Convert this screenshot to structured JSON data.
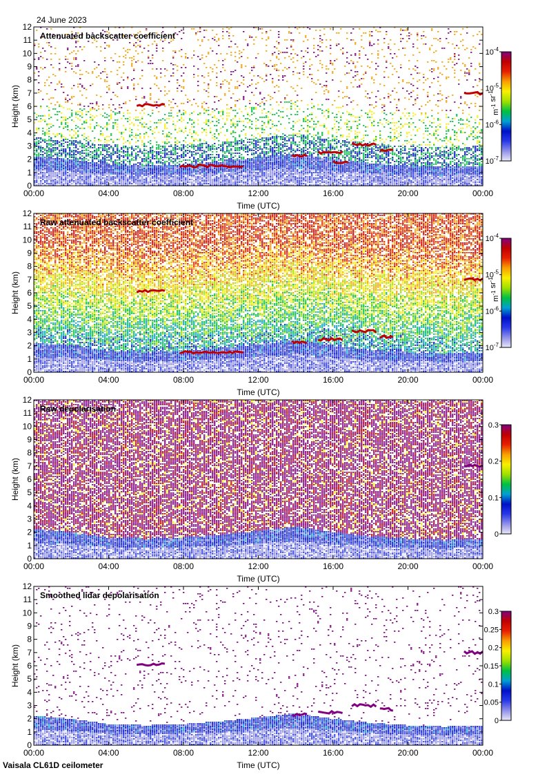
{
  "date_label": "24 June 2023",
  "footer_label": "Vaisala CL61D ceilometer",
  "colors": {
    "frame": "#000000",
    "background": "#ffffff",
    "colormap": [
      "#e8e8f8",
      "#9090e8",
      "#2838e8",
      "#0010c8",
      "#00a0d0",
      "#00c040",
      "#a0e000",
      "#f8f000",
      "#f8a000",
      "#e82000",
      "#c00000",
      "#800080"
    ]
  },
  "chart_data": [
    {
      "type": "heatmap",
      "title": "Attenuated backscatter coefficient",
      "xlabel": "Time (UTC)",
      "ylabel": "Height (km)",
      "xlim": [
        0,
        24
      ],
      "ylim": [
        0,
        12
      ],
      "x_ticks": [
        "00:00",
        "04:00",
        "08:00",
        "12:00",
        "16:00",
        "20:00",
        "00:00"
      ],
      "y_ticks": [
        "0",
        "1",
        "2",
        "3",
        "4",
        "5",
        "6",
        "7",
        "8",
        "9",
        "10",
        "11",
        "12"
      ],
      "colorbar": {
        "scale": "log",
        "range": [
          1e-07,
          0.0001
        ],
        "unit": "m-1 sr-1",
        "ticks": [
          {
            "base": "10",
            "exp": "-7",
            "value": 1e-07
          },
          {
            "base": "10",
            "exp": "-6",
            "value": 1e-06
          },
          {
            "base": "10",
            "exp": "-5",
            "value": 1e-05
          },
          {
            "base": "10",
            "exp": "-4",
            "value": 0.0001
          }
        ]
      },
      "features": {
        "boundary_layer_top_km": [
          2.2,
          2.0,
          1.6,
          1.5,
          1.6,
          1.8,
          2.1,
          2.4,
          2.0,
          1.7,
          1.5,
          1.4,
          1.5
        ],
        "cloud_layers": [
          {
            "t_start": 5.5,
            "t_end": 7.0,
            "height_km": 6.1
          },
          {
            "t_start": 7.8,
            "t_end": 11.2,
            "height_km": 1.5
          },
          {
            "t_start": 13.8,
            "t_end": 14.6,
            "height_km": 2.3
          },
          {
            "t_start": 15.2,
            "t_end": 16.5,
            "height_km": 2.5
          },
          {
            "t_start": 16.0,
            "t_end": 16.8,
            "height_km": 1.8
          },
          {
            "t_start": 17.0,
            "t_end": 18.3,
            "height_km": 3.1
          },
          {
            "t_start": 18.5,
            "t_end": 19.2,
            "height_km": 2.7
          },
          {
            "t_start": 23.0,
            "t_end": 24.0,
            "height_km": 7.0
          }
        ]
      }
    },
    {
      "type": "heatmap",
      "title": "Raw attenuated backscatter coefficient",
      "xlabel": "Time (UTC)",
      "ylabel": "Height (km)",
      "xlim": [
        0,
        24
      ],
      "ylim": [
        0,
        12
      ],
      "x_ticks": [
        "00:00",
        "04:00",
        "08:00",
        "12:00",
        "16:00",
        "20:00",
        "00:00"
      ],
      "y_ticks": [
        "0",
        "1",
        "2",
        "3",
        "4",
        "5",
        "6",
        "7",
        "8",
        "9",
        "10",
        "11",
        "12"
      ],
      "colorbar": {
        "scale": "log",
        "range": [
          1e-07,
          0.0001
        ],
        "unit": "m-1 sr-1",
        "ticks": [
          {
            "base": "10",
            "exp": "-7",
            "value": 1e-07
          },
          {
            "base": "10",
            "exp": "-6",
            "value": 1e-06
          },
          {
            "base": "10",
            "exp": "-5",
            "value": 1e-05
          },
          {
            "base": "10",
            "exp": "-4",
            "value": 0.0001
          }
        ]
      },
      "features": {
        "boundary_layer_top_km": [
          2.2,
          2.0,
          1.6,
          1.5,
          1.6,
          1.8,
          2.1,
          2.4,
          2.0,
          1.7,
          1.5,
          1.4,
          1.5
        ],
        "cloud_layers": [
          {
            "t_start": 5.5,
            "t_end": 7.0,
            "height_km": 6.1
          },
          {
            "t_start": 7.8,
            "t_end": 11.2,
            "height_km": 1.5
          },
          {
            "t_start": 13.8,
            "t_end": 14.6,
            "height_km": 2.3
          },
          {
            "t_start": 15.2,
            "t_end": 16.5,
            "height_km": 2.5
          },
          {
            "t_start": 17.0,
            "t_end": 18.3,
            "height_km": 3.1
          },
          {
            "t_start": 18.5,
            "t_end": 19.2,
            "height_km": 2.7
          },
          {
            "t_start": 23.0,
            "t_end": 24.0,
            "height_km": 7.0
          }
        ]
      }
    },
    {
      "type": "heatmap",
      "title": "Raw depolarisation",
      "xlabel": "Time (UTC)",
      "ylabel": "Height (km)",
      "xlim": [
        0,
        24
      ],
      "ylim": [
        0,
        12
      ],
      "x_ticks": [
        "00:00",
        "04:00",
        "08:00",
        "12:00",
        "16:00",
        "20:00",
        "00:00"
      ],
      "y_ticks": [
        "0",
        "1",
        "2",
        "3",
        "4",
        "5",
        "6",
        "7",
        "8",
        "9",
        "10",
        "11",
        "12"
      ],
      "colorbar": {
        "scale": "linear",
        "range": [
          0,
          0.3
        ],
        "unit": "",
        "ticks": [
          {
            "label": "0",
            "value": 0
          },
          {
            "label": "0.1",
            "value": 0.1
          },
          {
            "label": "0.2",
            "value": 0.2
          },
          {
            "label": "0.3",
            "value": 0.3
          }
        ]
      },
      "features": {
        "boundary_layer_top_km": [
          2.2,
          2.0,
          1.6,
          1.5,
          1.6,
          1.8,
          2.1,
          2.4,
          2.0,
          1.7,
          1.5,
          1.4,
          1.5
        ],
        "cloud_layers": [
          {
            "t_start": 23.0,
            "t_end": 24.0,
            "height_km": 7.0
          }
        ]
      }
    },
    {
      "type": "heatmap",
      "title": "Smoothed lidar depolarisation",
      "xlabel": "Time (UTC)",
      "ylabel": "Height (km)",
      "xlim": [
        0,
        24
      ],
      "ylim": [
        0,
        12
      ],
      "x_ticks": [
        "00:00",
        "04:00",
        "08:00",
        "12:00",
        "16:00",
        "20:00",
        "00:00"
      ],
      "y_ticks": [
        "0",
        "1",
        "2",
        "3",
        "4",
        "5",
        "6",
        "7",
        "8",
        "9",
        "10",
        "11",
        "12"
      ],
      "colorbar": {
        "scale": "linear",
        "range": [
          0,
          0.3
        ],
        "unit": "",
        "ticks": [
          {
            "label": "0",
            "value": 0
          },
          {
            "label": "0.05",
            "value": 0.05
          },
          {
            "label": "0.1",
            "value": 0.1
          },
          {
            "label": "0.15",
            "value": 0.15
          },
          {
            "label": "0.2",
            "value": 0.2
          },
          {
            "label": "0.25",
            "value": 0.25
          },
          {
            "label": "0.3",
            "value": 0.3
          }
        ]
      },
      "features": {
        "boundary_layer_top_km": [
          2.2,
          2.0,
          1.6,
          1.5,
          1.6,
          1.8,
          2.1,
          2.4,
          2.0,
          1.7,
          1.5,
          1.4,
          1.5
        ],
        "cloud_layers": [
          {
            "t_start": 5.5,
            "t_end": 7.0,
            "height_km": 6.1
          },
          {
            "t_start": 13.8,
            "t_end": 14.6,
            "height_km": 2.3
          },
          {
            "t_start": 15.2,
            "t_end": 16.5,
            "height_km": 2.5
          },
          {
            "t_start": 17.0,
            "t_end": 18.3,
            "height_km": 3.0
          },
          {
            "t_start": 18.5,
            "t_end": 19.2,
            "height_km": 2.7
          },
          {
            "t_start": 23.0,
            "t_end": 24.0,
            "height_km": 7.0
          }
        ]
      }
    }
  ]
}
